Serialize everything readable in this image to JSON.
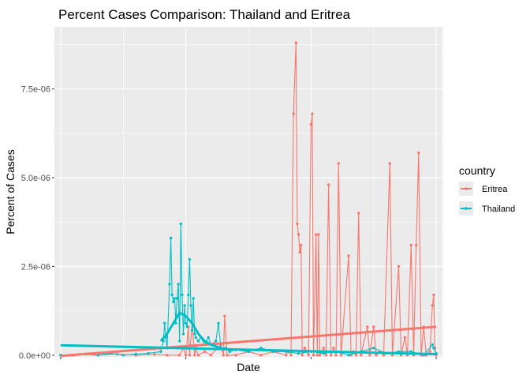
{
  "chart_data": {
    "type": "line",
    "title": "Percent Cases Comparison: Thailand and Eritrea",
    "xlabel": "Date",
    "ylabel": "Percent of Cases",
    "x_tick_labels": [
      "",
      "",
      "",
      ""
    ],
    "y_ticks": [
      0,
      2.5e-06,
      5e-06,
      7.5e-06
    ],
    "y_tick_labels": [
      "0.0e+00",
      "2.5e-06",
      "5.0e-06",
      "7.5e-06"
    ],
    "xlim": [
      -0.05,
      3.05
    ],
    "ylim": [
      -4.8e-08,
      9.249e-06
    ],
    "grid": true,
    "legend": {
      "title": "country",
      "position": "right",
      "entries": [
        {
          "label": "Eritrea",
          "color": "#F8766D"
        },
        {
          "label": "Thailand",
          "color": "#00BFC4"
        }
      ]
    },
    "series": [
      {
        "name": "Eritrea",
        "color": "#F8766D",
        "points": [
          [
            0.0,
            0
          ],
          [
            0.08,
            0
          ],
          [
            0.15,
            2e-08
          ],
          [
            0.3,
            0
          ],
          [
            0.45,
            3e-08
          ],
          [
            0.6,
            0
          ],
          [
            0.75,
            2e-08
          ],
          [
            0.85,
            0
          ],
          [
            0.95,
            0
          ],
          [
            0.98,
            2e-07
          ],
          [
            1.0,
            0
          ],
          [
            1.02,
            8e-07
          ],
          [
            1.03,
            0
          ],
          [
            1.05,
            9e-07
          ],
          [
            1.07,
            0
          ],
          [
            1.08,
            2e-07
          ],
          [
            1.1,
            0
          ],
          [
            1.15,
            1e-07
          ],
          [
            1.2,
            0
          ],
          [
            1.28,
            3e-07
          ],
          [
            1.3,
            0
          ],
          [
            1.31,
            1.1e-06
          ],
          [
            1.33,
            0
          ],
          [
            1.4,
            0
          ],
          [
            1.5,
            1e-07
          ],
          [
            1.6,
            0
          ],
          [
            1.7,
            1e-07
          ],
          [
            1.8,
            0
          ],
          [
            1.82,
            1e-07
          ],
          [
            1.84,
            0
          ],
          [
            1.86,
            6.8e-06
          ],
          [
            1.88,
            8.8e-06
          ],
          [
            1.89,
            3.7e-06
          ],
          [
            1.9,
            3.4e-06
          ],
          [
            1.91,
            2.9e-06
          ],
          [
            1.92,
            3.1e-06
          ],
          [
            1.93,
            0
          ],
          [
            1.95,
            2e-07
          ],
          [
            1.98,
            0
          ],
          [
            2.0,
            6.5e-06
          ],
          [
            2.01,
            6.8e-06
          ],
          [
            2.02,
            0
          ],
          [
            2.04,
            3.4e-06
          ],
          [
            2.05,
            0
          ],
          [
            2.06,
            3.4e-06
          ],
          [
            2.07,
            0
          ],
          [
            2.1,
            2e-07
          ],
          [
            2.12,
            0
          ],
          [
            2.14,
            4.8e-06
          ],
          [
            2.16,
            0
          ],
          [
            2.18,
            2e-07
          ],
          [
            2.2,
            0
          ],
          [
            2.22,
            5.4e-06
          ],
          [
            2.24,
            0
          ],
          [
            2.3,
            2.8e-06
          ],
          [
            2.32,
            0
          ],
          [
            2.34,
            1e-07
          ],
          [
            2.36,
            0
          ],
          [
            2.38,
            4e-06
          ],
          [
            2.4,
            0
          ],
          [
            2.45,
            8e-07
          ],
          [
            2.47,
            0
          ],
          [
            2.5,
            8e-07
          ],
          [
            2.52,
            0
          ],
          [
            2.55,
            1e-07
          ],
          [
            2.58,
            0
          ],
          [
            2.63,
            5.4e-06
          ],
          [
            2.65,
            0
          ],
          [
            2.7,
            2.5e-06
          ],
          [
            2.72,
            0
          ],
          [
            2.75,
            5e-07
          ],
          [
            2.77,
            0
          ],
          [
            2.8,
            3.1e-06
          ],
          [
            2.82,
            0
          ],
          [
            2.84,
            3.1e-06
          ],
          [
            2.86,
            5.7e-06
          ],
          [
            2.88,
            0
          ],
          [
            2.9,
            8e-07
          ],
          [
            2.92,
            0
          ],
          [
            2.95,
            1e-07
          ],
          [
            2.97,
            1.4e-06
          ],
          [
            2.98,
            1.7e-06
          ],
          [
            2.99,
            2e-07
          ],
          [
            3.0,
            0
          ]
        ],
        "trend": [
          [
            0.0,
            -2e-08
          ],
          [
            3.0,
            8e-07
          ]
        ]
      },
      {
        "name": "Thailand",
        "color": "#00BFC4",
        "points": [
          [
            0.0,
            0
          ],
          [
            0.1,
            0
          ],
          [
            0.2,
            3e-08
          ],
          [
            0.3,
            0
          ],
          [
            0.4,
            5e-08
          ],
          [
            0.5,
            0
          ],
          [
            0.6,
            3e-08
          ],
          [
            0.7,
            5e-08
          ],
          [
            0.8,
            1e-07
          ],
          [
            0.82,
            4e-07
          ],
          [
            0.83,
            9e-07
          ],
          [
            0.84,
            5e-07
          ],
          [
            0.85,
            2e-07
          ],
          [
            0.87,
            2e-06
          ],
          [
            0.88,
            3.3e-06
          ],
          [
            0.89,
            1.7e-06
          ],
          [
            0.9,
            1.5e-06
          ],
          [
            0.91,
            1.6e-06
          ],
          [
            0.92,
            9e-07
          ],
          [
            0.93,
            1.6e-06
          ],
          [
            0.94,
            2e-06
          ],
          [
            0.95,
            4e-07
          ],
          [
            0.96,
            3.7e-06
          ],
          [
            0.97,
            1.7e-06
          ],
          [
            0.98,
            6e-07
          ],
          [
            0.99,
            1.4e-06
          ],
          [
            1.0,
            9e-07
          ],
          [
            1.01,
            8e-07
          ],
          [
            1.02,
            1.7e-06
          ],
          [
            1.03,
            2.7e-06
          ],
          [
            1.04,
            1.4e-06
          ],
          [
            1.05,
            7e-07
          ],
          [
            1.06,
            1.6e-06
          ],
          [
            1.07,
            6e-07
          ],
          [
            1.08,
            5e-07
          ],
          [
            1.1,
            4e-07
          ],
          [
            1.12,
            5e-07
          ],
          [
            1.15,
            3e-07
          ],
          [
            1.18,
            5e-07
          ],
          [
            1.2,
            3e-07
          ],
          [
            1.24,
            4e-07
          ],
          [
            1.26,
            9e-07
          ],
          [
            1.28,
            2e-07
          ],
          [
            1.32,
            2e-07
          ],
          [
            1.35,
            1e-07
          ],
          [
            1.4,
            1.5e-07
          ],
          [
            1.5,
            1e-07
          ],
          [
            1.6,
            2e-07
          ],
          [
            1.7,
            1e-07
          ],
          [
            1.8,
            1e-07
          ],
          [
            1.9,
            5e-08
          ],
          [
            2.0,
            1e-07
          ],
          [
            2.1,
            5e-08
          ],
          [
            2.2,
            1e-07
          ],
          [
            2.3,
            0
          ],
          [
            2.4,
            1e-07
          ],
          [
            2.5,
            2e-07
          ],
          [
            2.6,
            5e-08
          ],
          [
            2.7,
            1e-07
          ],
          [
            2.8,
            1e-07
          ],
          [
            2.9,
            0
          ],
          [
            2.97,
            3e-07
          ],
          [
            2.98,
            2e-07
          ],
          [
            3.0,
            5e-08
          ]
        ],
        "trend": [
          [
            0.0,
            2.8e-07
          ],
          [
            3.0,
            3e-08
          ]
        ],
        "smooth": [
          [
            0.8,
            4e-07
          ],
          [
            0.85,
            6e-07
          ],
          [
            0.9,
            9e-07
          ],
          [
            0.95,
            1.2e-06
          ],
          [
            1.0,
            1.1e-06
          ],
          [
            1.05,
            9e-07
          ],
          [
            1.1,
            6e-07
          ],
          [
            1.15,
            4e-07
          ],
          [
            1.2,
            3e-07
          ],
          [
            1.28,
            2e-07
          ]
        ]
      }
    ]
  }
}
